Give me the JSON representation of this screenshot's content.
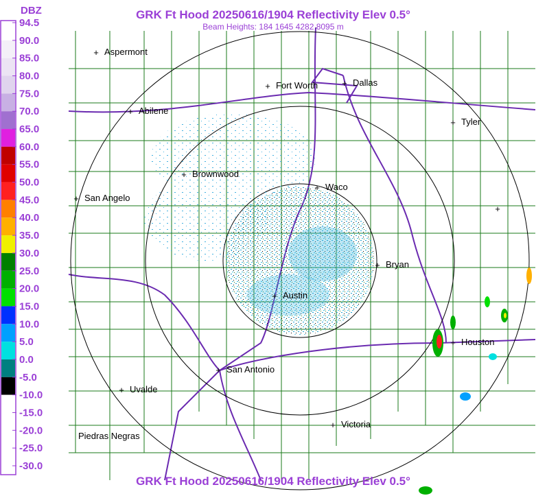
{
  "header": {
    "title": "GRK Ft Hood 20250616/1904 Reflectivity Elev 0.5°",
    "subtitle": "Beam Heights: 184 1645 4282 8095 m"
  },
  "legend": {
    "unit": "DBZ",
    "labels": [
      "94.5",
      "90.0",
      "85.0",
      "80.0",
      "75.0",
      "70.0",
      "65.0",
      "60.0",
      "55.0",
      "50.0",
      "45.0",
      "40.0",
      "35.0",
      "30.0",
      "25.0",
      "20.0",
      "15.0",
      "10.0",
      "5.0",
      "0.0",
      "-5.0",
      "-10.0",
      "-15.0",
      "-20.0",
      "-25.0",
      "-30.0"
    ],
    "colors": [
      "#ffffff",
      "#f4f0f8",
      "#ece4f4",
      "#e0d4ee",
      "#c8b0e4",
      "#a070d0",
      "#e020e0",
      "#c00000",
      "#e00000",
      "#ff2020",
      "#ff8000",
      "#ffb000",
      "#f0f000",
      "#008000",
      "#00b000",
      "#00e000",
      "#0030ff",
      "#00a0ff",
      "#00e0e0",
      "#008080",
      "#000000",
      "#ffffff",
      "#ffffff",
      "#ffffff",
      "#ffffff"
    ]
  },
  "cities": [
    "Aspermont",
    "Fort Worth",
    "Dallas",
    "Abilene",
    "Tyler",
    "Brownwood",
    "Waco",
    "San Angelo",
    "Bryan",
    "Austin",
    "Houston",
    "San Antonio",
    "Uvalde",
    "Victoria",
    "Piedras Negras"
  ],
  "footer": {
    "title": "GRK Ft Hood 20250616/1904 Reflectivity Elev 0.5°"
  }
}
